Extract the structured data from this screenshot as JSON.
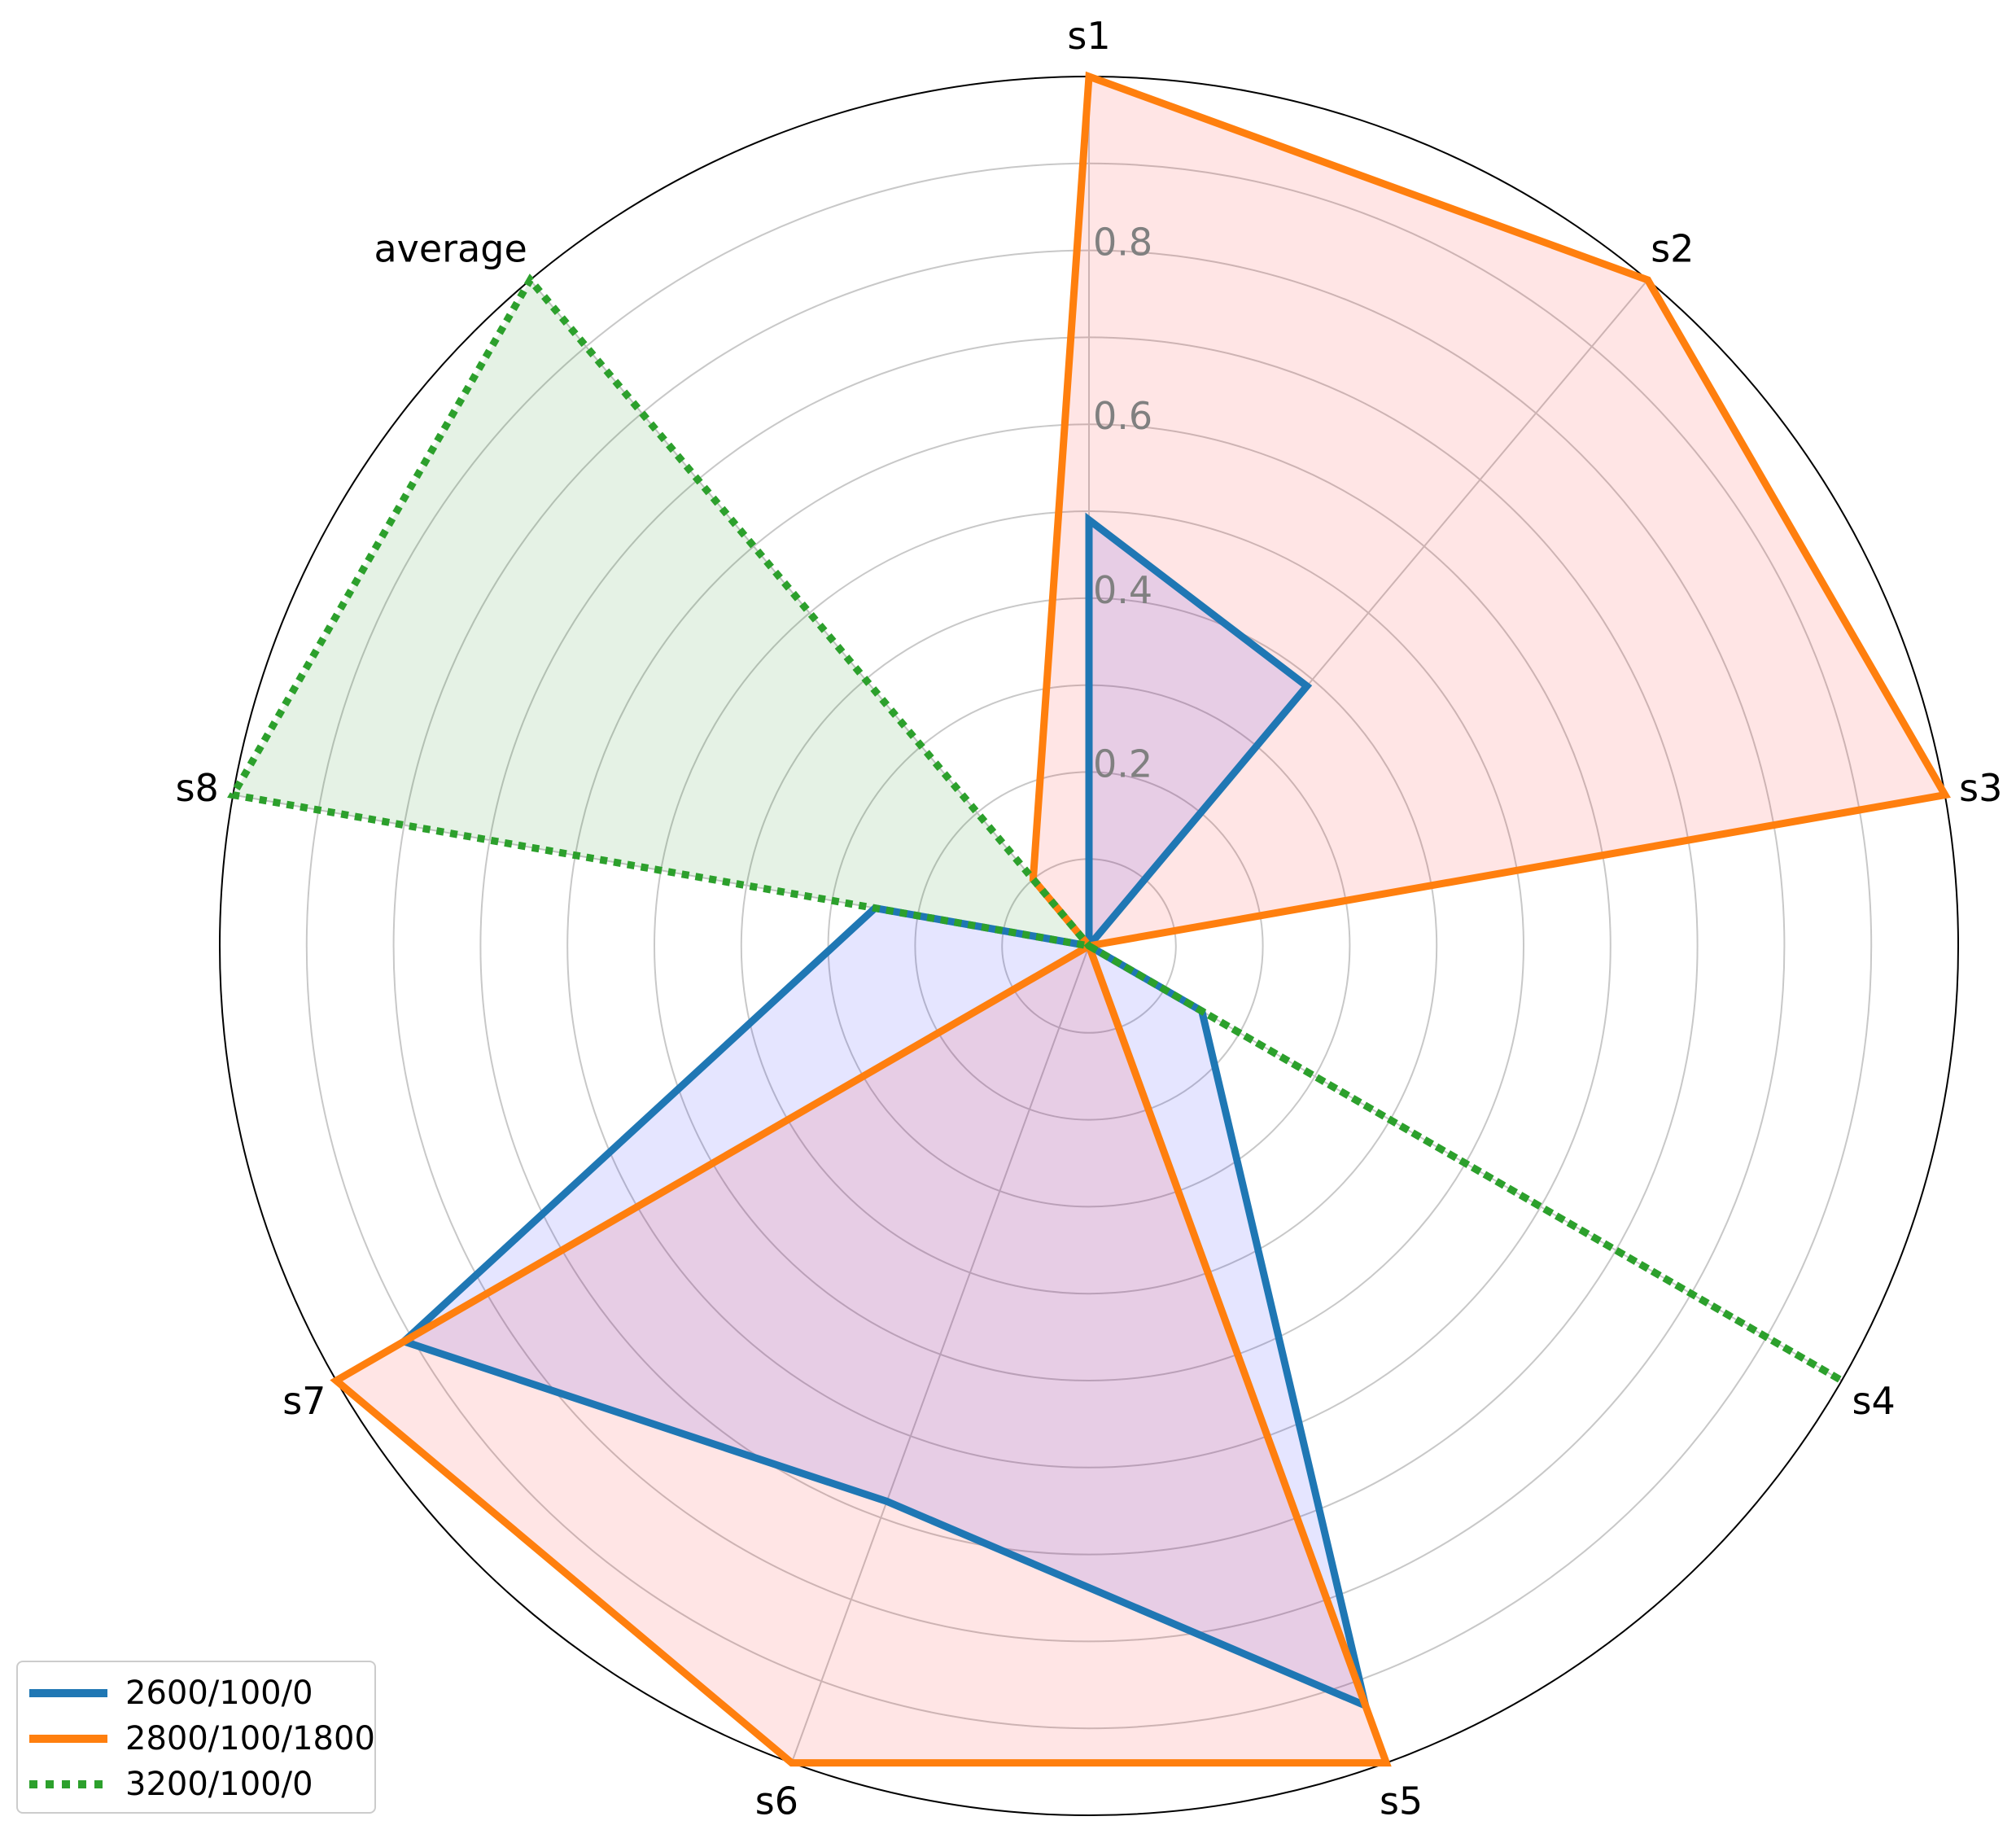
{
  "chart_data": {
    "type": "radar",
    "axes": [
      "s1",
      "s2",
      "s3",
      "s4",
      "s5",
      "s6",
      "s7",
      "s8",
      "average"
    ],
    "rlim": [
      0,
      1.0
    ],
    "rticks": [
      0.2,
      0.4,
      0.6,
      0.8
    ],
    "rtick_labels": [
      "0.2",
      "0.4",
      "0.6",
      "0.8"
    ],
    "grid": true,
    "legend_position": "lower-left",
    "series": [
      {
        "name": "2600/100/0",
        "values": [
          0.49,
          0.39,
          0.0,
          0.15,
          0.93,
          0.68,
          0.91,
          0.25,
          0.0
        ],
        "color": "#1f77b4",
        "fill": "#0000ff",
        "style": "solid"
      },
      {
        "name": "2800/100/1800",
        "values": [
          1.0,
          1.0,
          1.0,
          0.0,
          1.0,
          1.0,
          1.0,
          0.0,
          0.1
        ],
        "color": "#ff7f0e",
        "fill": "#ff0000",
        "style": "solid"
      },
      {
        "name": "3200/100/0",
        "values": [
          0.0,
          0.0,
          0.0,
          1.0,
          0.0,
          0.0,
          0.0,
          1.0,
          1.0
        ],
        "color": "#2ca02c",
        "fill": "#008000",
        "style": "dotted"
      }
    ]
  }
}
